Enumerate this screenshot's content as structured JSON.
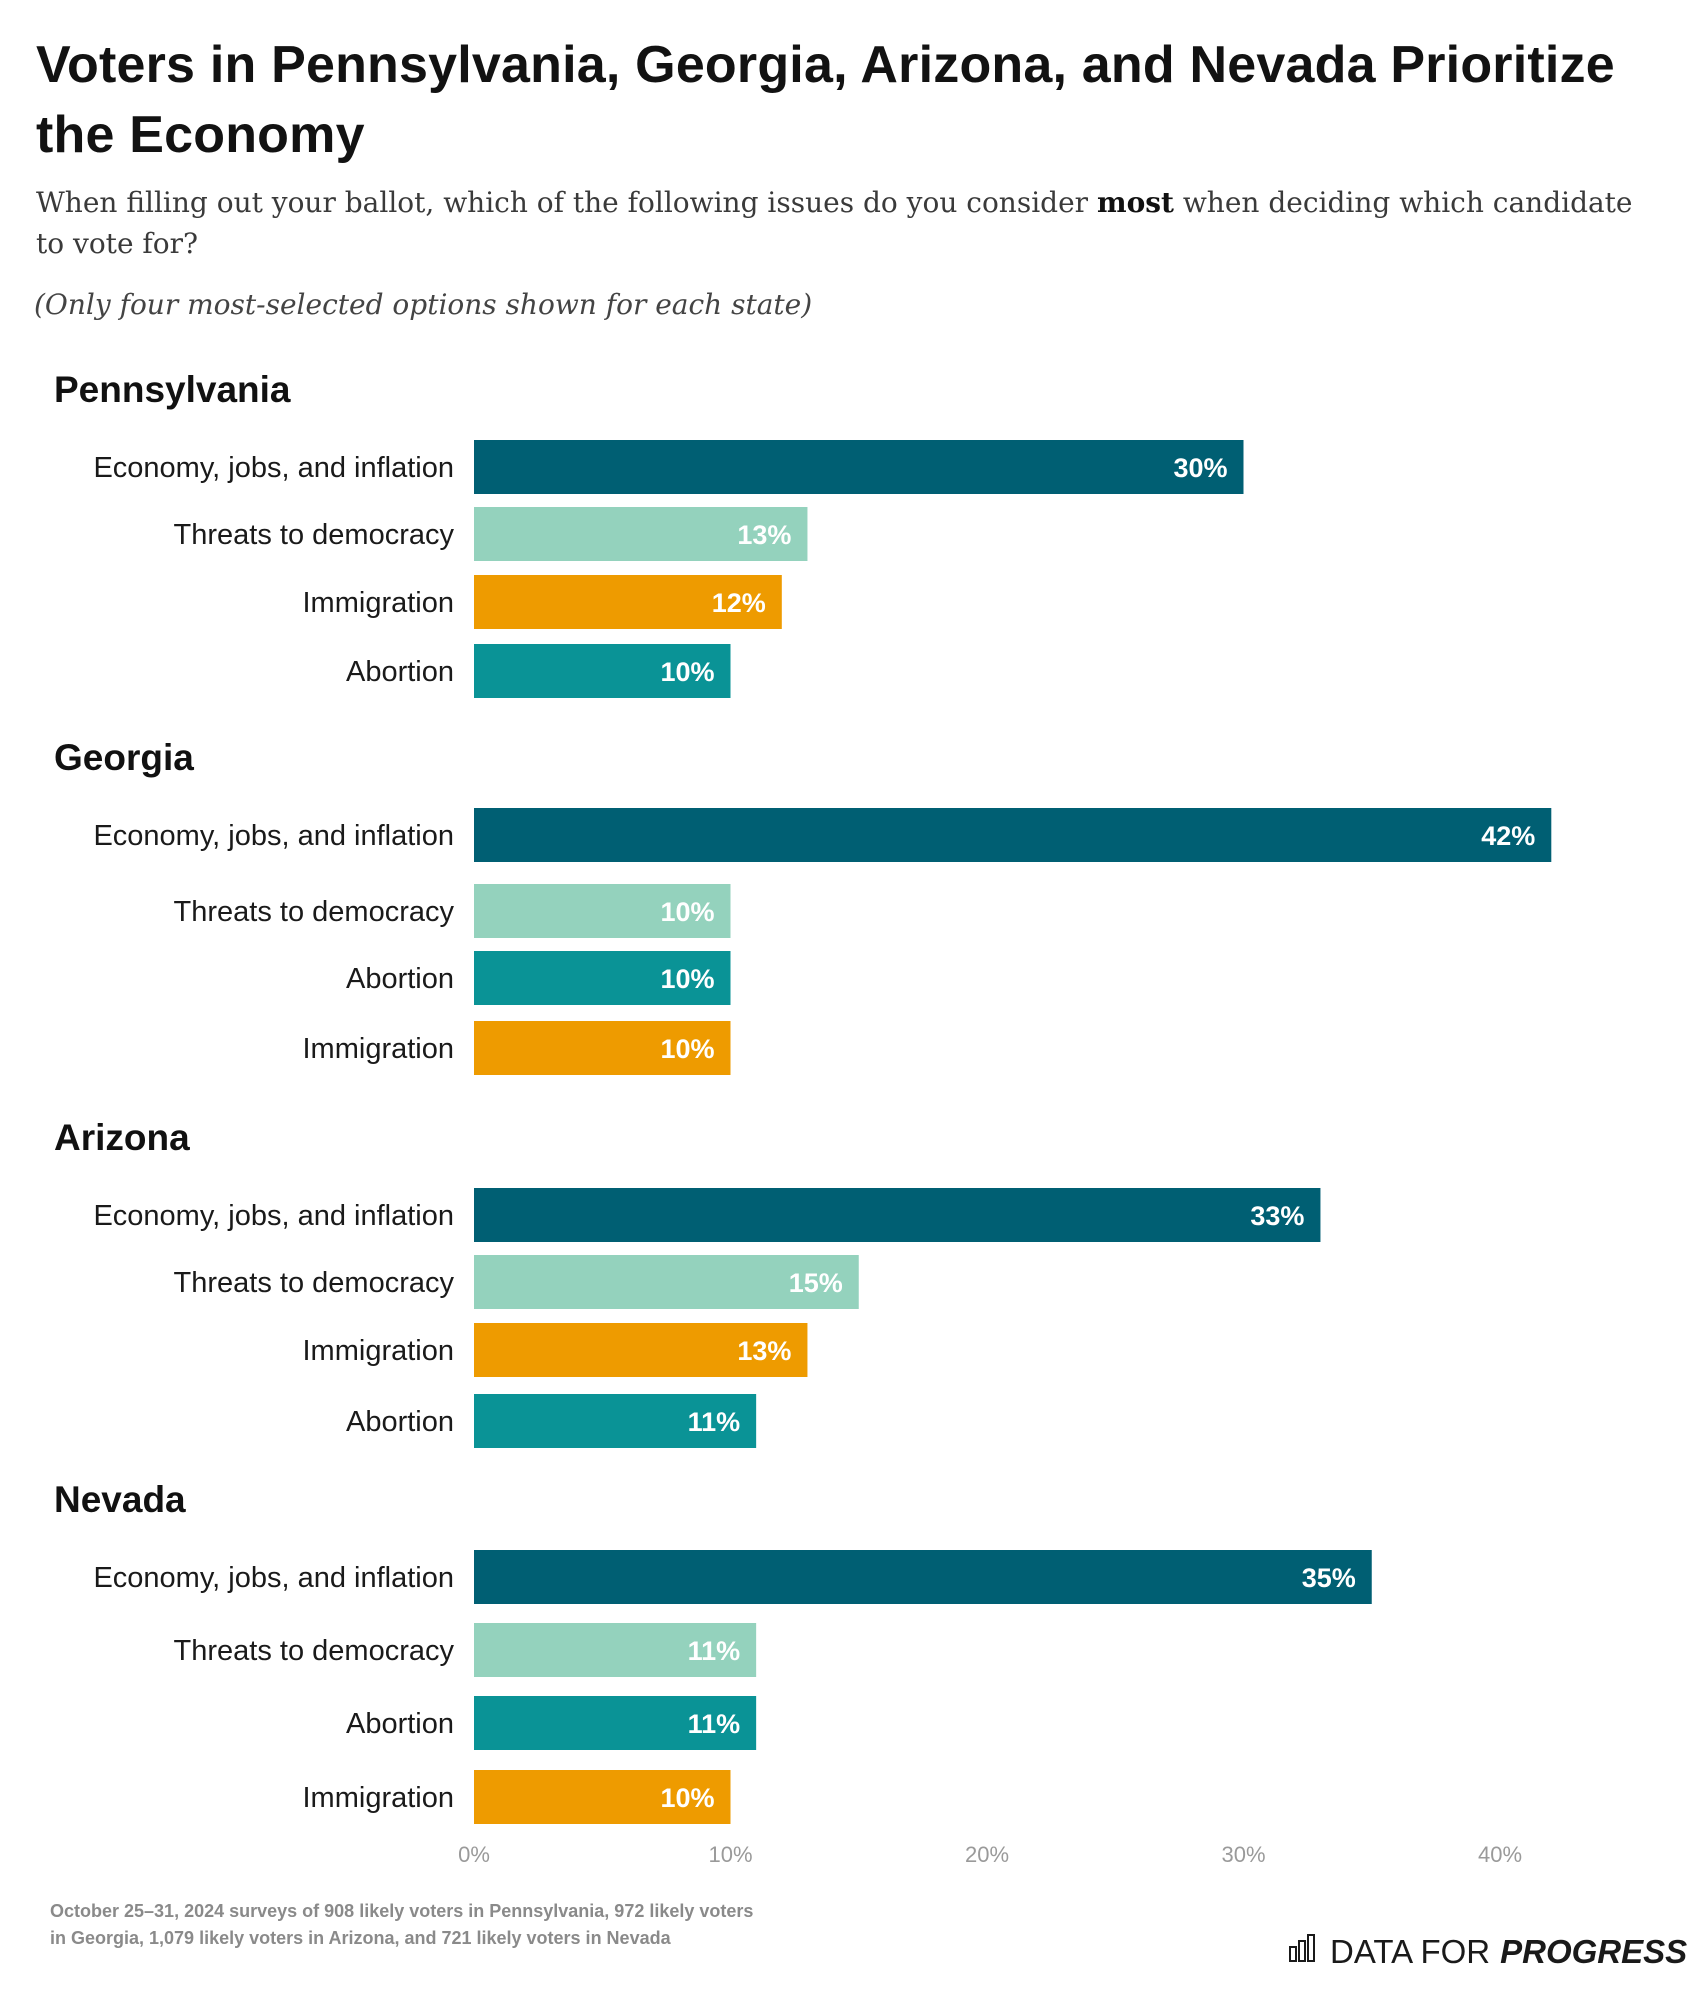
{
  "title": "Voters in Pennsylvania, Georgia, Arizona, and Nevada Prioritize the Economy",
  "subtitle_before": "When filling out your ballot, which of the following issues do you consider ",
  "subtitle_bold": "most",
  "subtitle_after": " when deciding which candidate to vote for?",
  "note": "(Only four most-selected options shown for each state)",
  "footnote": "October 25–31, 2024 surveys of 908 likely voters in Pennsylvania, 972 likely voters in Georgia, 1,079 likely voters in Arizona, and 721 likely voters in Nevada",
  "brand": {
    "prefix": "DATA FOR",
    "emphasis": "PROGRESS",
    "icon": "bar-chart-icon"
  },
  "colors": {
    "Economy, jobs, and inflation": "#005f73",
    "Threats to democracy": "#94d2bd",
    "Immigration": "#ee9b00",
    "Abortion": "#0a9396"
  },
  "chart_data": {
    "type": "bar",
    "orientation": "horizontal",
    "xlim": [
      0,
      45
    ],
    "xticks": [
      "0%",
      "10%",
      "20%",
      "30%",
      "40%"
    ],
    "xtick_values": [
      0,
      10,
      20,
      30,
      40
    ],
    "groups": [
      {
        "name": "Pennsylvania",
        "items": [
          {
            "label": "Economy, jobs, and inflation",
            "value": 30,
            "text": "30%"
          },
          {
            "label": "Threats to democracy",
            "value": 13,
            "text": "13%"
          },
          {
            "label": "Immigration",
            "value": 12,
            "text": "12%"
          },
          {
            "label": "Abortion",
            "value": 10,
            "text": "10%"
          }
        ]
      },
      {
        "name": "Georgia",
        "items": [
          {
            "label": "Economy, jobs, and inflation",
            "value": 42,
            "text": "42%"
          },
          {
            "label": "Threats to democracy",
            "value": 10,
            "text": "10%"
          },
          {
            "label": "Abortion",
            "value": 10,
            "text": "10%"
          },
          {
            "label": "Immigration",
            "value": 10,
            "text": "10%"
          }
        ]
      },
      {
        "name": "Arizona",
        "items": [
          {
            "label": "Economy, jobs, and inflation",
            "value": 33,
            "text": "33%"
          },
          {
            "label": "Threats to democracy",
            "value": 15,
            "text": "15%"
          },
          {
            "label": "Immigration",
            "value": 13,
            "text": "13%"
          },
          {
            "label": "Abortion",
            "value": 11,
            "text": "11%"
          }
        ]
      },
      {
        "name": "Nevada",
        "items": [
          {
            "label": "Economy, jobs, and inflation",
            "value": 35,
            "text": "35%"
          },
          {
            "label": "Threats to democracy",
            "value": 11,
            "text": "11%"
          },
          {
            "label": "Abortion",
            "value": 11,
            "text": "11%"
          },
          {
            "label": "Immigration",
            "value": 10,
            "text": "10%"
          }
        ]
      }
    ]
  }
}
